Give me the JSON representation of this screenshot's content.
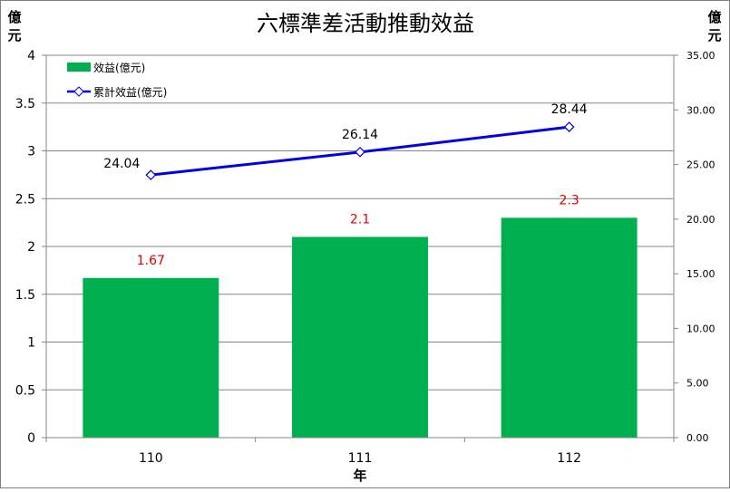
{
  "chart_data": {
    "type": "bar+line",
    "title": "六標準差活動推動效益",
    "xlabel": "年",
    "y_left_label": "億元",
    "y_right_label": "億元",
    "categories": [
      "110",
      "111",
      "112"
    ],
    "y_left": {
      "min": 0,
      "max": 4,
      "ticks": [
        "0",
        "0.5",
        "1",
        "1.5",
        "2",
        "2.5",
        "3",
        "3.5",
        "4"
      ]
    },
    "y_right": {
      "min": 0,
      "max": 35,
      "ticks": [
        "0.00",
        "5.00",
        "10.00",
        "15.00",
        "20.00",
        "25.00",
        "30.00",
        "35.00"
      ]
    },
    "grid": true,
    "legend_position": "top-left",
    "series": [
      {
        "name": "效益(億元)",
        "type": "bar",
        "axis": "left",
        "values": [
          1.67,
          2.1,
          2.3
        ],
        "labels": [
          "1.67",
          "2.1",
          "2.3"
        ],
        "color": "#00B050",
        "label_color": "#E00000"
      },
      {
        "name": "累計效益(億元)",
        "type": "line",
        "axis": "right",
        "values": [
          24.04,
          26.14,
          28.44
        ],
        "labels": [
          "24.04",
          "26.14",
          "28.44"
        ],
        "color": "#0000E0",
        "marker": "diamond",
        "label_color": "#000000"
      }
    ]
  }
}
